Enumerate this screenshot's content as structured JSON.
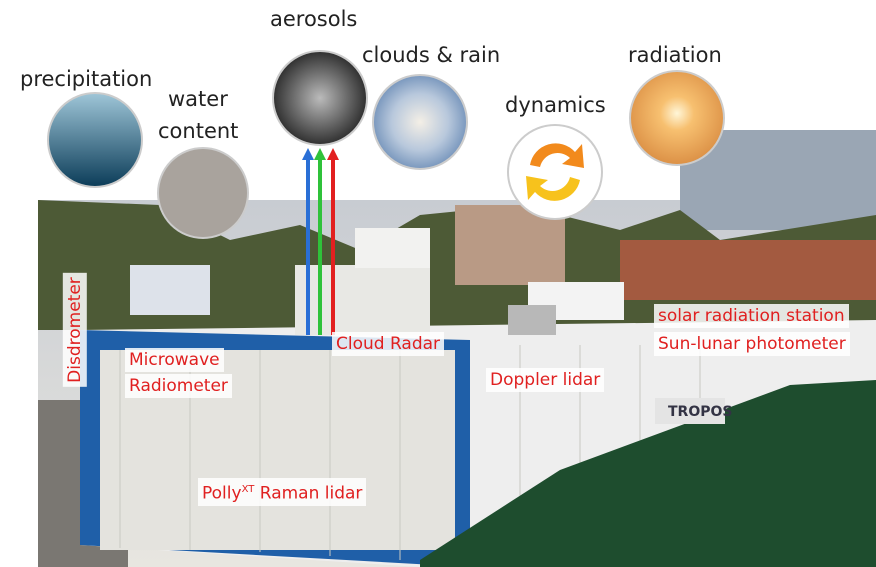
{
  "topics": {
    "precipitation": "precipitation",
    "water": "water",
    "content": "content",
    "aerosols": "aerosols",
    "clouds": "clouds & rain",
    "dynamics": "dynamics",
    "radiation": "radiation"
  },
  "instruments": {
    "disdrometer": "Disdrometer",
    "microwave_1": "Microwave",
    "microwave_2": "Radiometer",
    "cloud_radar": "Cloud Radar",
    "doppler": "Doppler lidar",
    "solar_1": "solar radiation station",
    "solar_2": "Sun-lunar photometer",
    "polly_1": "Polly",
    "polly_sup": "XT",
    "polly_2": " Raman lidar"
  },
  "container_text": "TROPOS"
}
